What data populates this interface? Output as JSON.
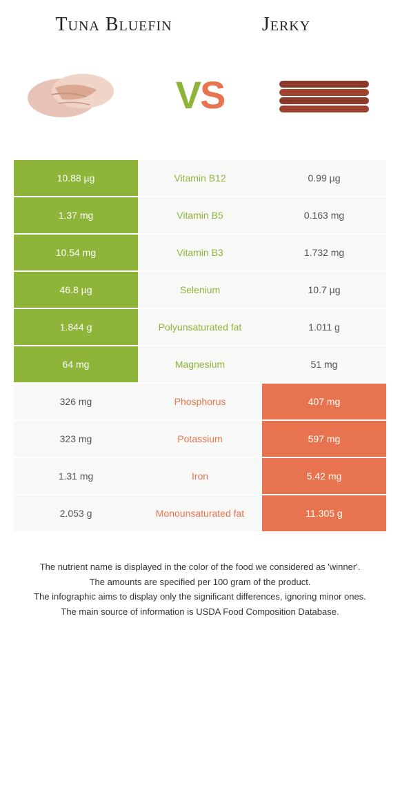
{
  "colors": {
    "green": "#8fb43a",
    "orange": "#e8744f",
    "mid_bg": "#f8f8f6",
    "white": "#ffffff"
  },
  "food_left": "Tuna Bluefin",
  "food_right": "Jerky",
  "vs_v": "V",
  "vs_s": "S",
  "rows": [
    {
      "left": "10.88 µg",
      "label": "Vitamin B12",
      "right": "0.99 µg",
      "winner": "left"
    },
    {
      "left": "1.37 mg",
      "label": "Vitamin B5",
      "right": "0.163 mg",
      "winner": "left"
    },
    {
      "left": "10.54 mg",
      "label": "Vitamin B3",
      "right": "1.732 mg",
      "winner": "left"
    },
    {
      "left": "46.8 µg",
      "label": "Selenium",
      "right": "10.7 µg",
      "winner": "left"
    },
    {
      "left": "1.844 g",
      "label": "Polyunsaturated fat",
      "right": "1.011 g",
      "winner": "left"
    },
    {
      "left": "64 mg",
      "label": "Magnesium",
      "right": "51 mg",
      "winner": "left"
    },
    {
      "left": "326 mg",
      "label": "Phosphorus",
      "right": "407 mg",
      "winner": "right"
    },
    {
      "left": "323 mg",
      "label": "Potassium",
      "right": "597 mg",
      "winner": "right"
    },
    {
      "left": "1.31 mg",
      "label": "Iron",
      "right": "5.42 mg",
      "winner": "right"
    },
    {
      "left": "2.053 g",
      "label": "Monounsaturated fat",
      "right": "11.305 g",
      "winner": "right"
    }
  ],
  "footer": [
    "The nutrient name is displayed in the color of the food we considered as 'winner'.",
    "The amounts are specified per 100 gram of the product.",
    "The infographic aims to display only the significant differences, ignoring minor ones.",
    "The main source of information is USDA Food Composition Database."
  ]
}
